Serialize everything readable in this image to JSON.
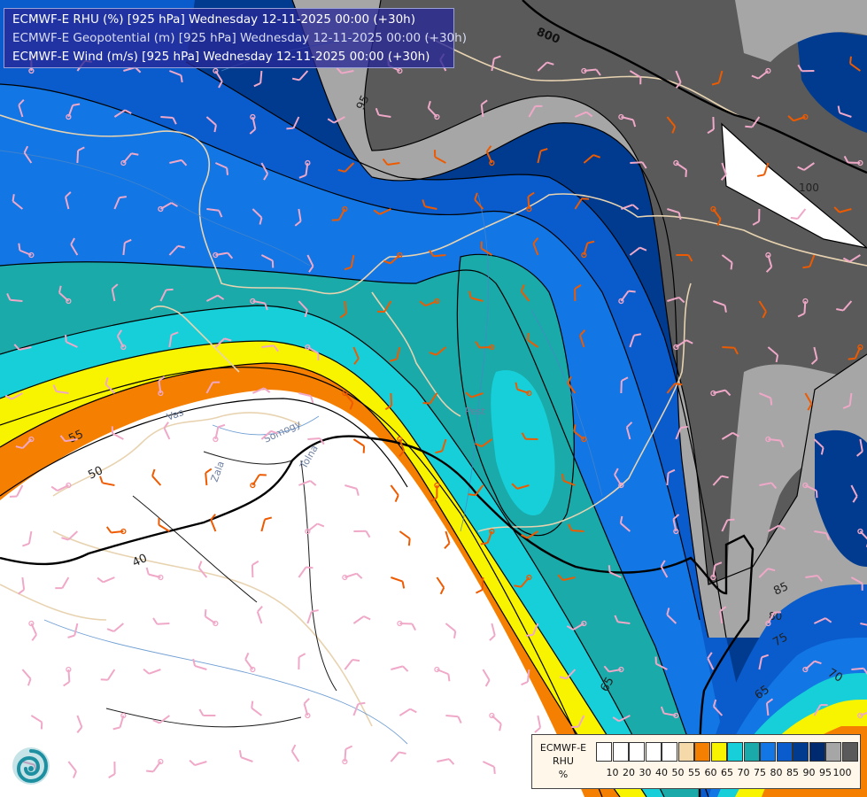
{
  "title_lines": [
    {
      "text": "ECMWF-E RHU (%) [925 hPa] Wednesday 12-11-2025 00:00 (+30h)",
      "color": "#ffffff"
    },
    {
      "text": "ECMWF-E Geopotential (m) [925 hPa] Wednesday 12-11-2025 00:00 (+30h)",
      "color": "#d8dcf2"
    },
    {
      "text": "ECMWF-E Wind (m/s) [925 hPa] Wednesday 12-11-2025 00:00 (+30h)",
      "color": "#ffffff"
    }
  ],
  "contour_labels": [
    "800",
    "95",
    "100",
    "55",
    "50",
    "40",
    "65",
    "85",
    "80",
    "75",
    "70",
    "65"
  ],
  "place_labels": [
    "Vas",
    "Somogy",
    "Tolna",
    "Zala",
    "Pest"
  ],
  "legend": {
    "label_lines": [
      "ECMWF-E",
      "RHU",
      "%"
    ],
    "ticks": [
      "10",
      "20",
      "30",
      "40",
      "50",
      "55",
      "60",
      "65",
      "70",
      "75",
      "80",
      "85",
      "90",
      "95",
      "100"
    ],
    "colors": [
      "#ffffff",
      "#ffffff",
      "#ffffff",
      "#ffffff",
      "#ffffff",
      "#f5d9a8",
      "#f57f00",
      "#f8f400",
      "#17cfd8",
      "#19aaa9",
      "#1276e4",
      "#0a5ccc",
      "#003b8f",
      "#002a70",
      "#a6a6a6",
      "#5a5a5a"
    ]
  },
  "colors": {
    "title_bg": "#2828a0",
    "contour": "#000000",
    "border": "#e8d3b1",
    "river": "#4b86c8",
    "wind_pink": "#f0a8c8",
    "wind_orange": "#ee5a00"
  },
  "logo": {
    "name": "ecmwf-swirl-logo"
  }
}
